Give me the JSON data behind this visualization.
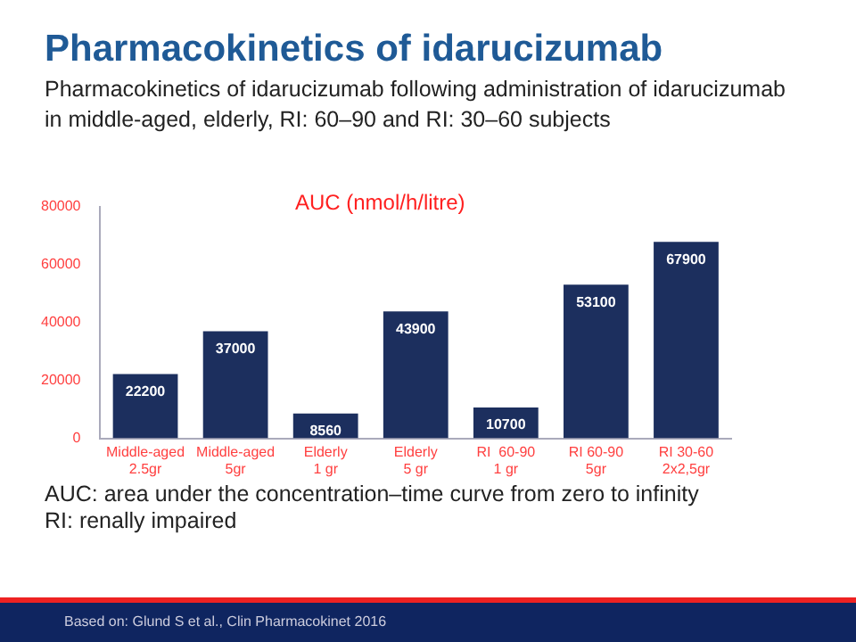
{
  "chart_data": {
    "type": "bar",
    "title": "Pharmacokinetics of idarucizumab",
    "subtitle": "Pharmacokinetics of idarucizumab following administration of idarucizumab in middle-aged, elderly, RI: 60–90 and RI: 30–60 subjects",
    "ylabel": "AUC (nmol/h/litre)",
    "categories": [
      "Middle-aged\n2.5gr",
      "Middle-aged\n5gr",
      "Elderly\n1 gr",
      "Elderly\n5 gr",
      "RI  60-90\n1 gr",
      "RI 60-90\n5gr",
      "RI 30-60\n2x2,5gr"
    ],
    "values": [
      22200,
      37000,
      8560,
      43900,
      10700,
      53100,
      67900
    ],
    "color": "#1c2f5e",
    "ylim": [
      0,
      80000
    ],
    "yticks": [
      0,
      20000,
      40000,
      60000,
      80000
    ],
    "grid": false,
    "legend": false,
    "data_labels": true,
    "annotations": [
      "AUC: area under the concentration–time curve from zero to infinity",
      "RI: renally impaired",
      "Based on: Glund S et al., Clin Pharmacokinet 2016"
    ]
  }
}
